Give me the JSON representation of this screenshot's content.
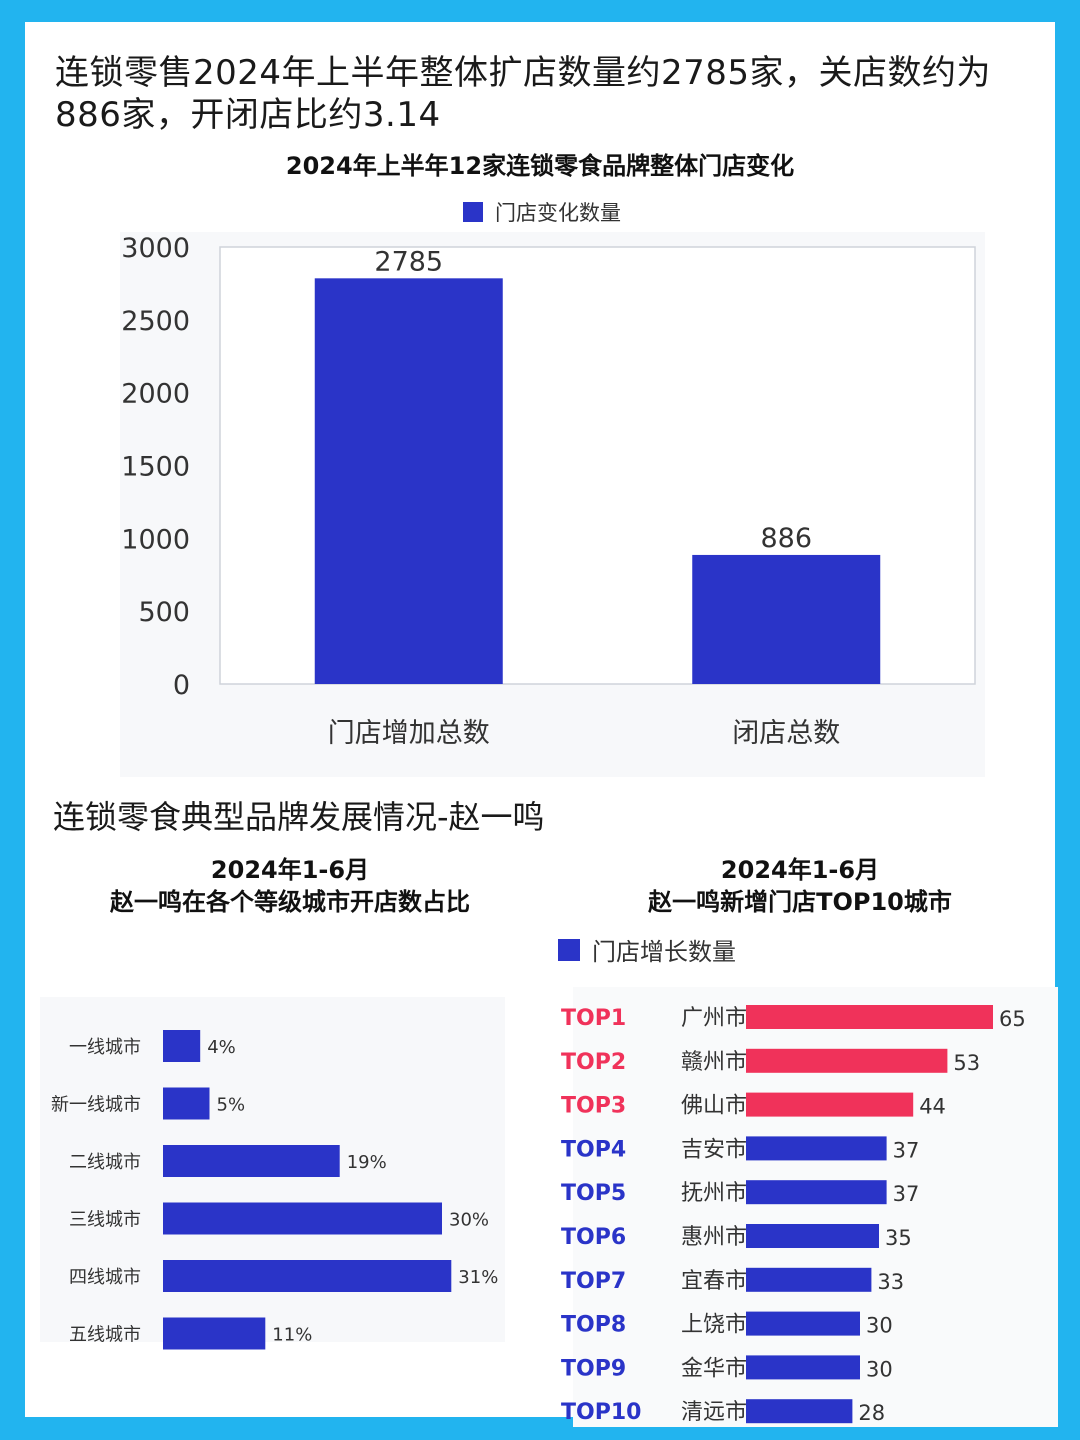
{
  "headline": "连锁零售2024年上半年整体扩店数量约2785家，关店数约为886家，开闭店比约3.14",
  "section_title": "连锁零食典型品牌发展情况-赵一鸣",
  "colors": {
    "primary": "#2a34c8",
    "highlight": "#f0325a",
    "background": "#22b4ef"
  },
  "chart_data": [
    {
      "type": "bar",
      "title": "2024年上半年12家连锁零食品牌整体门店变化",
      "legend": [
        "门店变化数量"
      ],
      "categories": [
        "门店增加总数",
        "闭店总数"
      ],
      "series": [
        {
          "name": "门店变化数量",
          "values": [
            2785,
            886
          ]
        }
      ],
      "yticks": [
        "0",
        "500",
        "1000",
        "1500",
        "2000",
        "2500",
        "3000"
      ],
      "ylim": [
        0,
        3000
      ],
      "data_labels": [
        "2785",
        "886"
      ],
      "grid": false
    },
    {
      "type": "bar",
      "orientation": "horizontal",
      "title_line1": "2024年1-6月",
      "title_line2": "赵一鸣在各个等级城市开店数占比",
      "categories": [
        "一线城市",
        "新一线城市",
        "二线城市",
        "三线城市",
        "四线城市",
        "五线城市"
      ],
      "values": [
        4,
        5,
        19,
        30,
        31,
        11
      ],
      "data_labels": [
        "4%",
        "5%",
        "19%",
        "30%",
        "31%",
        "11%"
      ],
      "unit": "%"
    },
    {
      "type": "bar",
      "orientation": "horizontal",
      "title_line1": "2024年1-6月",
      "title_line2": "赵一鸣新增门店TOP10城市",
      "legend": [
        "门店增长数量"
      ],
      "ranks": [
        "TOP1",
        "TOP2",
        "TOP3",
        "TOP4",
        "TOP5",
        "TOP6",
        "TOP7",
        "TOP8",
        "TOP9",
        "TOP10"
      ],
      "categories": [
        "广州市",
        "赣州市",
        "佛山市",
        "吉安市",
        "抚州市",
        "惠州市",
        "宜春市",
        "上饶市",
        "金华市",
        "清远市"
      ],
      "values": [
        65,
        53,
        44,
        37,
        37,
        35,
        33,
        30,
        30,
        28
      ],
      "data_labels": [
        "65",
        "53",
        "44",
        "37",
        "37",
        "35",
        "33",
        "30",
        "30",
        "28"
      ],
      "highlighted_top": 3
    }
  ]
}
